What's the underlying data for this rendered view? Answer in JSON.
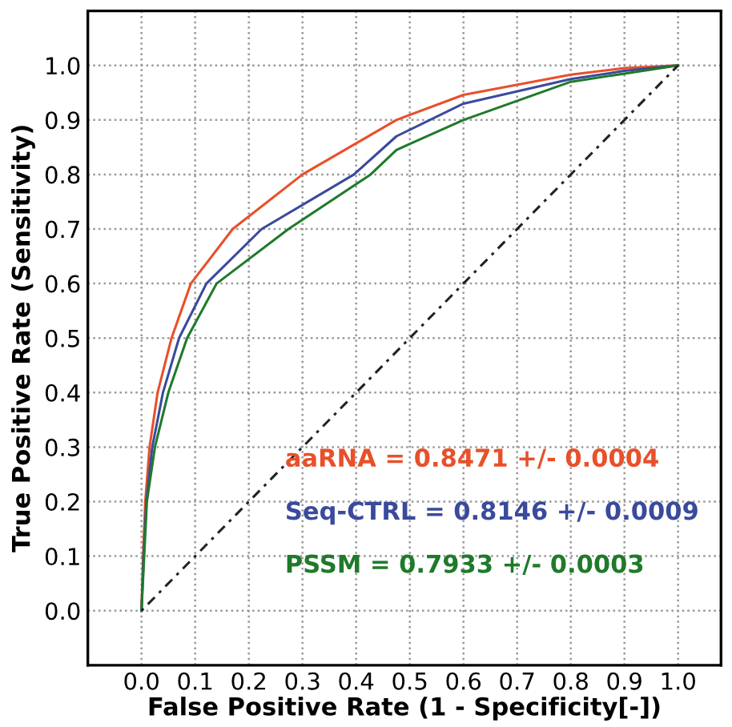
{
  "chart_data": {
    "type": "line",
    "xlabel": "False Positive Rate (1 - Specificity[-])",
    "ylabel": "True Positive Rate (Sensitivity)",
    "xlim": [
      -0.1,
      1.08
    ],
    "ylim": [
      -0.1,
      1.1
    ],
    "xticks": [
      {
        "value": 0,
        "label": "0.0"
      },
      {
        "value": 0.1,
        "label": "0.1"
      },
      {
        "value": 0.2,
        "label": "0.2"
      },
      {
        "value": 0.3,
        "label": "0.3"
      },
      {
        "value": 0.4,
        "label": "0.4"
      },
      {
        "value": 0.5,
        "label": "0.5"
      },
      {
        "value": 0.6,
        "label": "0.6"
      },
      {
        "value": 0.7,
        "label": "0.7"
      },
      {
        "value": 0.8,
        "label": "0.8"
      },
      {
        "value": 0.9,
        "label": "0.9"
      },
      {
        "value": 1,
        "label": "1.0"
      }
    ],
    "yticks": [
      {
        "value": 0,
        "label": "0.0"
      },
      {
        "value": 0.1,
        "label": "0.1"
      },
      {
        "value": 0.2,
        "label": "0.2"
      },
      {
        "value": 0.3,
        "label": "0.3"
      },
      {
        "value": 0.4,
        "label": "0.4"
      },
      {
        "value": 0.5,
        "label": "0.5"
      },
      {
        "value": 0.6,
        "label": "0.6"
      },
      {
        "value": 0.7,
        "label": "0.7"
      },
      {
        "value": 0.8,
        "label": "0.8"
      },
      {
        "value": 0.9,
        "label": "0.9"
      },
      {
        "value": 1,
        "label": "1.0"
      }
    ],
    "grid": true,
    "legend": "bottom right",
    "marker": "none",
    "series": [
      {
        "name": "aaRNA = 0.8471 +/- 0.0004",
        "color": "#e8502a",
        "x": [
          0,
          0.003,
          0.007,
          0.015,
          0.03,
          0.056,
          0.092,
          0.17,
          0.3,
          0.475,
          0.6,
          0.8,
          0.9,
          1.0
        ],
        "values": [
          0,
          0.1,
          0.2,
          0.3,
          0.4,
          0.5,
          0.6,
          0.7,
          0.8,
          0.9,
          0.946,
          0.983,
          0.995,
          1.0
        ]
      },
      {
        "name": "Seq-CTRL = 0.8146 +/- 0.0009",
        "color": "#3a4a9c",
        "x": [
          0,
          0.004,
          0.009,
          0.02,
          0.04,
          0.07,
          0.121,
          0.224,
          0.396,
          0.475,
          0.6,
          0.8,
          0.9,
          1.0
        ],
        "values": [
          0,
          0.1,
          0.2,
          0.3,
          0.4,
          0.5,
          0.6,
          0.7,
          0.8,
          0.87,
          0.93,
          0.975,
          0.99,
          1.0
        ]
      },
      {
        "name": "PSSM = 0.7933 +/- 0.0003",
        "color": "#1f7a2a",
        "x": [
          0,
          0.005,
          0.01,
          0.025,
          0.05,
          0.085,
          0.14,
          0.274,
          0.427,
          0.475,
          0.6,
          0.8,
          0.9,
          1.0
        ],
        "values": [
          0,
          0.1,
          0.2,
          0.3,
          0.4,
          0.5,
          0.6,
          0.7,
          0.8,
          0.845,
          0.9,
          0.97,
          0.985,
          1.0
        ]
      },
      {
        "color": "#222222",
        "line_style": "dotted",
        "x": [
          0,
          1
        ],
        "values": [
          0,
          1
        ]
      }
    ]
  }
}
